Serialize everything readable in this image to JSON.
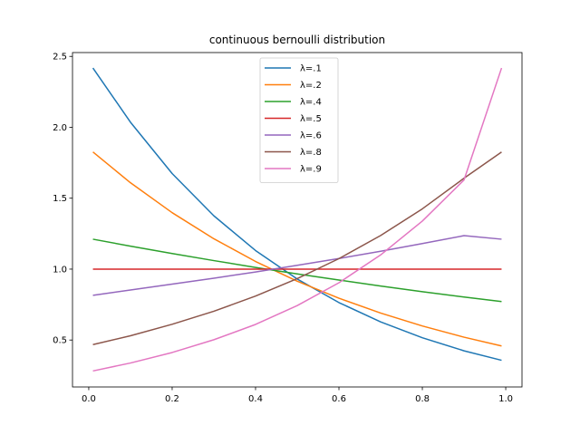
{
  "chart_data": {
    "type": "line",
    "title": "continuous bernoulli distribution",
    "xlabel": "",
    "ylabel": "",
    "xlim": [
      -0.039,
      1.039
    ],
    "ylim": [
      0.169,
      2.527
    ],
    "xticks": [
      0.0,
      0.2,
      0.4,
      0.6,
      0.8,
      1.0
    ],
    "xtick_labels": [
      "0.0",
      "0.2",
      "0.4",
      "0.6",
      "0.8",
      "1.0"
    ],
    "yticks": [
      0.5,
      1.0,
      1.5,
      2.0,
      2.5
    ],
    "ytick_labels": [
      "0.5",
      "1.0",
      "1.5",
      "2.0",
      "2.5"
    ],
    "grid": false,
    "legend_position": "top-center",
    "x": [
      0.01,
      0.1,
      0.2,
      0.3,
      0.4,
      0.5,
      0.6,
      0.7,
      0.8,
      0.9,
      0.99
    ],
    "series": [
      {
        "name": "λ=.1",
        "color": "#1f77b4",
        "values": [
          2.418,
          2.036,
          1.674,
          1.376,
          1.131,
          0.93,
          0.764,
          0.628,
          0.516,
          0.424,
          0.357
        ]
      },
      {
        "name": "λ=.2",
        "color": "#ff7f0e",
        "values": [
          1.826,
          1.609,
          1.398,
          1.214,
          1.054,
          0.915,
          0.795,
          0.69,
          0.599,
          0.52,
          0.458
        ]
      },
      {
        "name": "λ=.4",
        "color": "#2ca02c",
        "values": [
          1.211,
          1.162,
          1.11,
          1.06,
          1.012,
          0.966,
          0.923,
          0.881,
          0.841,
          0.803,
          0.771
        ]
      },
      {
        "name": "λ=.5",
        "color": "#d62728",
        "values": [
          1.0,
          1.0,
          1.0,
          1.0,
          1.0,
          1.0,
          1.0,
          1.0,
          1.0,
          1.0,
          1.0
        ]
      },
      {
        "name": "λ=.6",
        "color": "#9467bd",
        "values": [
          0.815,
          0.853,
          0.894,
          0.936,
          0.98,
          1.027,
          1.075,
          1.126,
          1.18,
          1.236,
          1.211
        ]
      },
      {
        "name": "λ=.8",
        "color": "#8c564b",
        "values": [
          0.468,
          0.53,
          0.611,
          0.703,
          0.81,
          0.933,
          1.074,
          1.237,
          1.425,
          1.641,
          1.826
        ]
      },
      {
        "name": "λ=.9",
        "color": "#e377c2",
        "values": [
          0.282,
          0.338,
          0.412,
          0.502,
          0.61,
          0.743,
          0.904,
          1.1,
          1.339,
          1.629,
          2.418
        ]
      }
    ]
  }
}
